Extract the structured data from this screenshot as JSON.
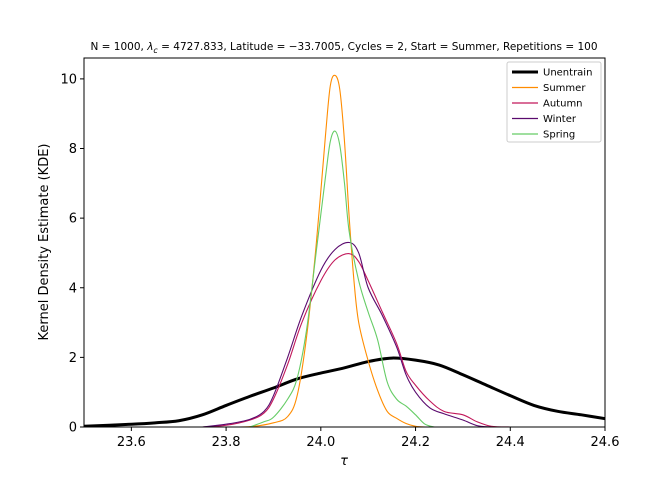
{
  "chart_data": {
    "type": "line",
    "title": "N = 1000, λc = 4727.833, Latitude = −33.7005, Cycles = 2, Start = Summer, Repetitions = 100",
    "title_parts": {
      "prefix": "N = 1000, ",
      "lambda_symbol": "λ",
      "lambda_sub": "c",
      "suffix": " = 4727.833, Latitude = −33.7005, Cycles = 2, Start = Summer, Repetitions = 100"
    },
    "xlabel": "τ",
    "ylabel": "Kernel Density Estimate (KDE)",
    "xlim": [
      23.5,
      24.6
    ],
    "ylim": [
      0,
      10.6
    ],
    "xticks": [
      23.6,
      23.8,
      24.0,
      24.2,
      24.4,
      24.6
    ],
    "xtick_labels": [
      "23.6",
      "23.8",
      "24.0",
      "24.2",
      "24.4",
      "24.6"
    ],
    "yticks": [
      0,
      2,
      4,
      6,
      8,
      10
    ],
    "ytick_labels": [
      "0",
      "2",
      "4",
      "6",
      "8",
      "10"
    ],
    "grid": false,
    "legend_position": "top-right",
    "series": [
      {
        "name": "Unentrain",
        "color": "#000000",
        "x": [
          23.5,
          23.6,
          23.65,
          23.7,
          23.75,
          23.8,
          23.85,
          23.9,
          23.95,
          24.0,
          24.05,
          24.1,
          24.15,
          24.2,
          24.25,
          24.3,
          24.35,
          24.4,
          24.45,
          24.5,
          24.55,
          24.6
        ],
        "y": [
          0.02,
          0.08,
          0.12,
          0.18,
          0.35,
          0.62,
          0.88,
          1.12,
          1.38,
          1.55,
          1.7,
          1.88,
          1.98,
          1.92,
          1.78,
          1.5,
          1.2,
          0.9,
          0.62,
          0.45,
          0.35,
          0.24
        ]
      },
      {
        "name": "Summer",
        "color": "#ff8c00",
        "x": [
          23.78,
          23.85,
          23.9,
          23.93,
          23.95,
          23.97,
          23.99,
          24.01,
          24.02,
          24.03,
          24.04,
          24.05,
          24.06,
          24.07,
          24.08,
          24.1,
          24.12,
          24.14,
          24.16,
          24.18,
          24.2,
          24.22
        ],
        "y": [
          0.0,
          0.01,
          0.12,
          0.3,
          0.9,
          2.6,
          5.2,
          8.4,
          9.8,
          10.1,
          9.7,
          8.2,
          6.0,
          4.2,
          3.0,
          1.9,
          1.05,
          0.45,
          0.25,
          0.1,
          0.02,
          0.0
        ]
      },
      {
        "name": "Autumn",
        "color": "#c2185b",
        "x": [
          23.75,
          23.8,
          23.85,
          23.88,
          23.9,
          23.93,
          23.96,
          24.0,
          24.03,
          24.06,
          24.08,
          24.1,
          24.13,
          24.16,
          24.18,
          24.2,
          24.23,
          24.26,
          24.3,
          24.33,
          24.36,
          24.4
        ],
        "y": [
          0.0,
          0.05,
          0.2,
          0.4,
          0.8,
          1.8,
          3.0,
          4.2,
          4.8,
          4.98,
          4.75,
          4.2,
          3.3,
          2.4,
          1.6,
          1.2,
          0.75,
          0.45,
          0.35,
          0.15,
          0.02,
          0.0
        ]
      },
      {
        "name": "Winter",
        "color": "#5a0a6e",
        "x": [
          23.75,
          23.8,
          23.85,
          23.88,
          23.9,
          23.93,
          23.96,
          24.0,
          24.03,
          24.06,
          24.08,
          24.1,
          24.13,
          24.16,
          24.18,
          24.2,
          24.23,
          24.26,
          24.3,
          24.33,
          24.36
        ],
        "y": [
          0.0,
          0.08,
          0.22,
          0.45,
          0.9,
          2.0,
          3.2,
          4.5,
          5.1,
          5.3,
          5.0,
          4.0,
          3.2,
          2.3,
          1.5,
          1.0,
          0.55,
          0.38,
          0.2,
          0.04,
          0.0
        ]
      },
      {
        "name": "Spring",
        "color": "#66cc66",
        "x": [
          23.85,
          23.88,
          23.9,
          23.93,
          23.95,
          23.97,
          23.99,
          24.01,
          24.02,
          24.03,
          24.04,
          24.05,
          24.06,
          24.08,
          24.1,
          24.12,
          24.14,
          24.16,
          24.18,
          24.2,
          24.22,
          24.24
        ],
        "y": [
          0.0,
          0.15,
          0.28,
          0.8,
          1.4,
          2.8,
          5.0,
          7.2,
          8.2,
          8.5,
          8.1,
          7.0,
          5.6,
          4.2,
          3.3,
          2.5,
          1.3,
          0.8,
          0.6,
          0.35,
          0.08,
          0.0
        ]
      }
    ]
  }
}
